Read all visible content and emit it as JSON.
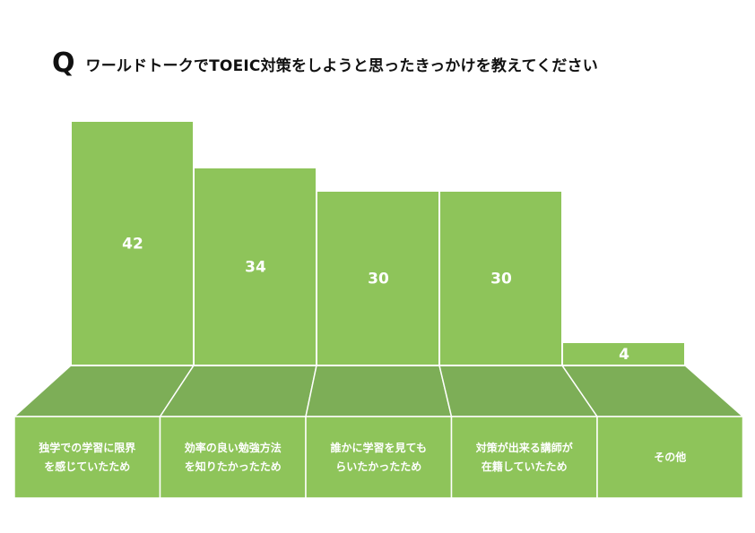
{
  "header": {
    "q_mark": "Q",
    "question": "ワールドトークでTOEIC対策をしようと思ったきっかけを教えてください"
  },
  "colors": {
    "bar": "#8ec45a",
    "floor": "#7dae57",
    "text": "#111111",
    "label": "#ffffff"
  },
  "chart_data": {
    "type": "bar",
    "title": "ワールドトークでTOEIC対策をしようと思ったきっかけを教えてください",
    "categories": [
      [
        "独学での学習に限界",
        "を感じていたため"
      ],
      [
        "効率の良い勉強方法",
        "を知りたかったため"
      ],
      [
        "誰かに学習を見ても",
        "らいたかったため"
      ],
      [
        "対策が出来る講師が",
        "在籍していたため"
      ],
      [
        "その他"
      ]
    ],
    "values": [
      42,
      34,
      30,
      30,
      4
    ],
    "xlabel": "",
    "ylabel": "",
    "grid": false,
    "legend": "none"
  }
}
